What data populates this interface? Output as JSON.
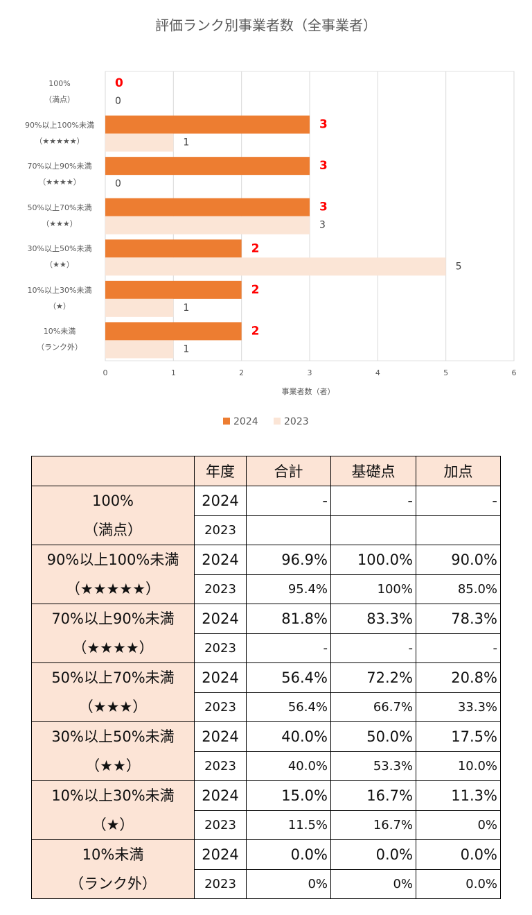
{
  "chart_data": {
    "type": "bar",
    "orientation": "horizontal",
    "title": "評価ランク別事業者数（全事業者）",
    "categories": [
      "100%\n（満点）",
      "90%以上100%未満\n（★★★★★）",
      "70%以上90%未満\n（★★★★）",
      "50%以上70%未満\n（★★★）",
      "30%以上50%未満\n（★★）",
      "10%以上30%未満\n（★）",
      "10%未満\n（ランク外）"
    ],
    "series": [
      {
        "name": "2024",
        "color": "#ed7d31",
        "label_color": "#ff0000",
        "values": [
          0,
          3,
          3,
          3,
          2,
          2,
          2
        ]
      },
      {
        "name": "2023",
        "color": "#fbe5d6",
        "label_color": "#404040",
        "values": [
          0,
          1,
          0,
          3,
          5,
          1,
          1
        ]
      }
    ],
    "xlabel": "事業者数（者）",
    "xlim": [
      0,
      6
    ],
    "xticks": [
      0,
      1,
      2,
      3,
      4,
      5,
      6
    ],
    "grid": true,
    "legend": "bottom"
  },
  "table": {
    "header": [
      "年度",
      "合計",
      "基礎点",
      "加点"
    ],
    "groups": [
      {
        "label": "100%\n（満点）",
        "rows": [
          [
            "2024",
            "-",
            "-",
            "-"
          ],
          [
            "2023"
          ]
        ]
      },
      {
        "label": "90%以上100%未満\n（★★★★★）",
        "rows": [
          [
            "2024",
            "96.9%",
            "100.0%",
            "90.0%"
          ],
          [
            "2023",
            "95.4%",
            "100%",
            "85.0%"
          ]
        ]
      },
      {
        "label": "70%以上90%未満\n（★★★★）",
        "rows": [
          [
            "2024",
            "81.8%",
            "83.3%",
            "78.3%"
          ],
          [
            "2023",
            "-",
            "-",
            "-"
          ]
        ]
      },
      {
        "label": "50%以上70%未満\n（★★★）",
        "rows": [
          [
            "2024",
            "56.4%",
            "72.2%",
            "20.8%"
          ],
          [
            "2023",
            "56.4%",
            "66.7%",
            "33.3%"
          ]
        ]
      },
      {
        "label": "30%以上50%未満\n（★★）",
        "rows": [
          [
            "2024",
            "40.0%",
            "50.0%",
            "17.5%"
          ],
          [
            "2023",
            "40.0%",
            "53.3%",
            "10.0%"
          ]
        ]
      },
      {
        "label": "10%以上30%未満\n（★）",
        "rows": [
          [
            "2024",
            "15.0%",
            "16.7%",
            "11.3%"
          ],
          [
            "2023",
            "11.5%",
            "16.7%",
            "0%"
          ]
        ]
      },
      {
        "label": "10%未満\n（ランク外）",
        "rows": [
          [
            "2024",
            "0.0%",
            "0.0%",
            "0.0%"
          ],
          [
            "2023",
            "0%",
            "0%",
            "0.0%"
          ]
        ]
      }
    ]
  }
}
